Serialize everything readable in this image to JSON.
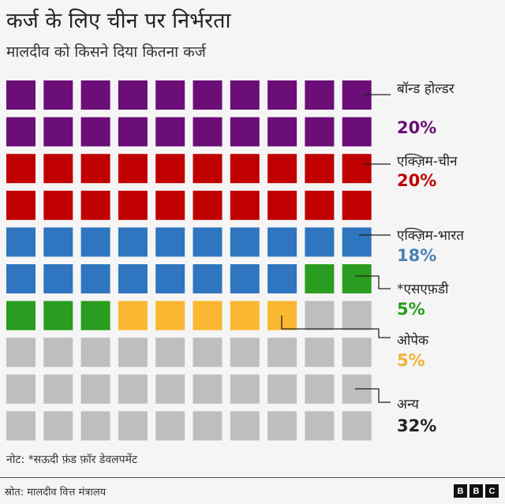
{
  "chart_data": {
    "type": "waffle",
    "title": "कर्ज के लिए चीन पर निर्भरता",
    "subtitle": "मालदीव को किसने दिया कितना कर्ज",
    "grid": [
      10,
      10
    ],
    "series": [
      {
        "name": "बॉन्ड होल्डर",
        "value": 20,
        "label": "20%",
        "color": "#6b0e78"
      },
      {
        "name": "एक्ज़िम-चीन",
        "value": 20,
        "label": "20%",
        "color": "#c00000"
      },
      {
        "name": "एक्ज़िम-भारत",
        "value": 18,
        "label": "18%",
        "color": "#2f75bf"
      },
      {
        "name": "*एसएफ़डी",
        "value": 5,
        "label": "5%",
        "color": "#2a9c1f"
      },
      {
        "name": "ओपेक",
        "value": 5,
        "label": "5%",
        "color": "#fbb731"
      },
      {
        "name": "अन्य",
        "value": 32,
        "label": "32%",
        "color": "#bebebe"
      }
    ],
    "percent_label_colors": [
      "#6b0e78",
      "#c00000",
      "#4a82b8",
      "#2a9c1f",
      "#f0b13a",
      "#222222"
    ]
  },
  "note": "नोट: *सऊदी फ़ंड फ़ॉर डेवलपमेंट",
  "source": "स्रोत: मालदीव वित्त मंत्रालय",
  "logo": [
    "B",
    "B",
    "C"
  ]
}
